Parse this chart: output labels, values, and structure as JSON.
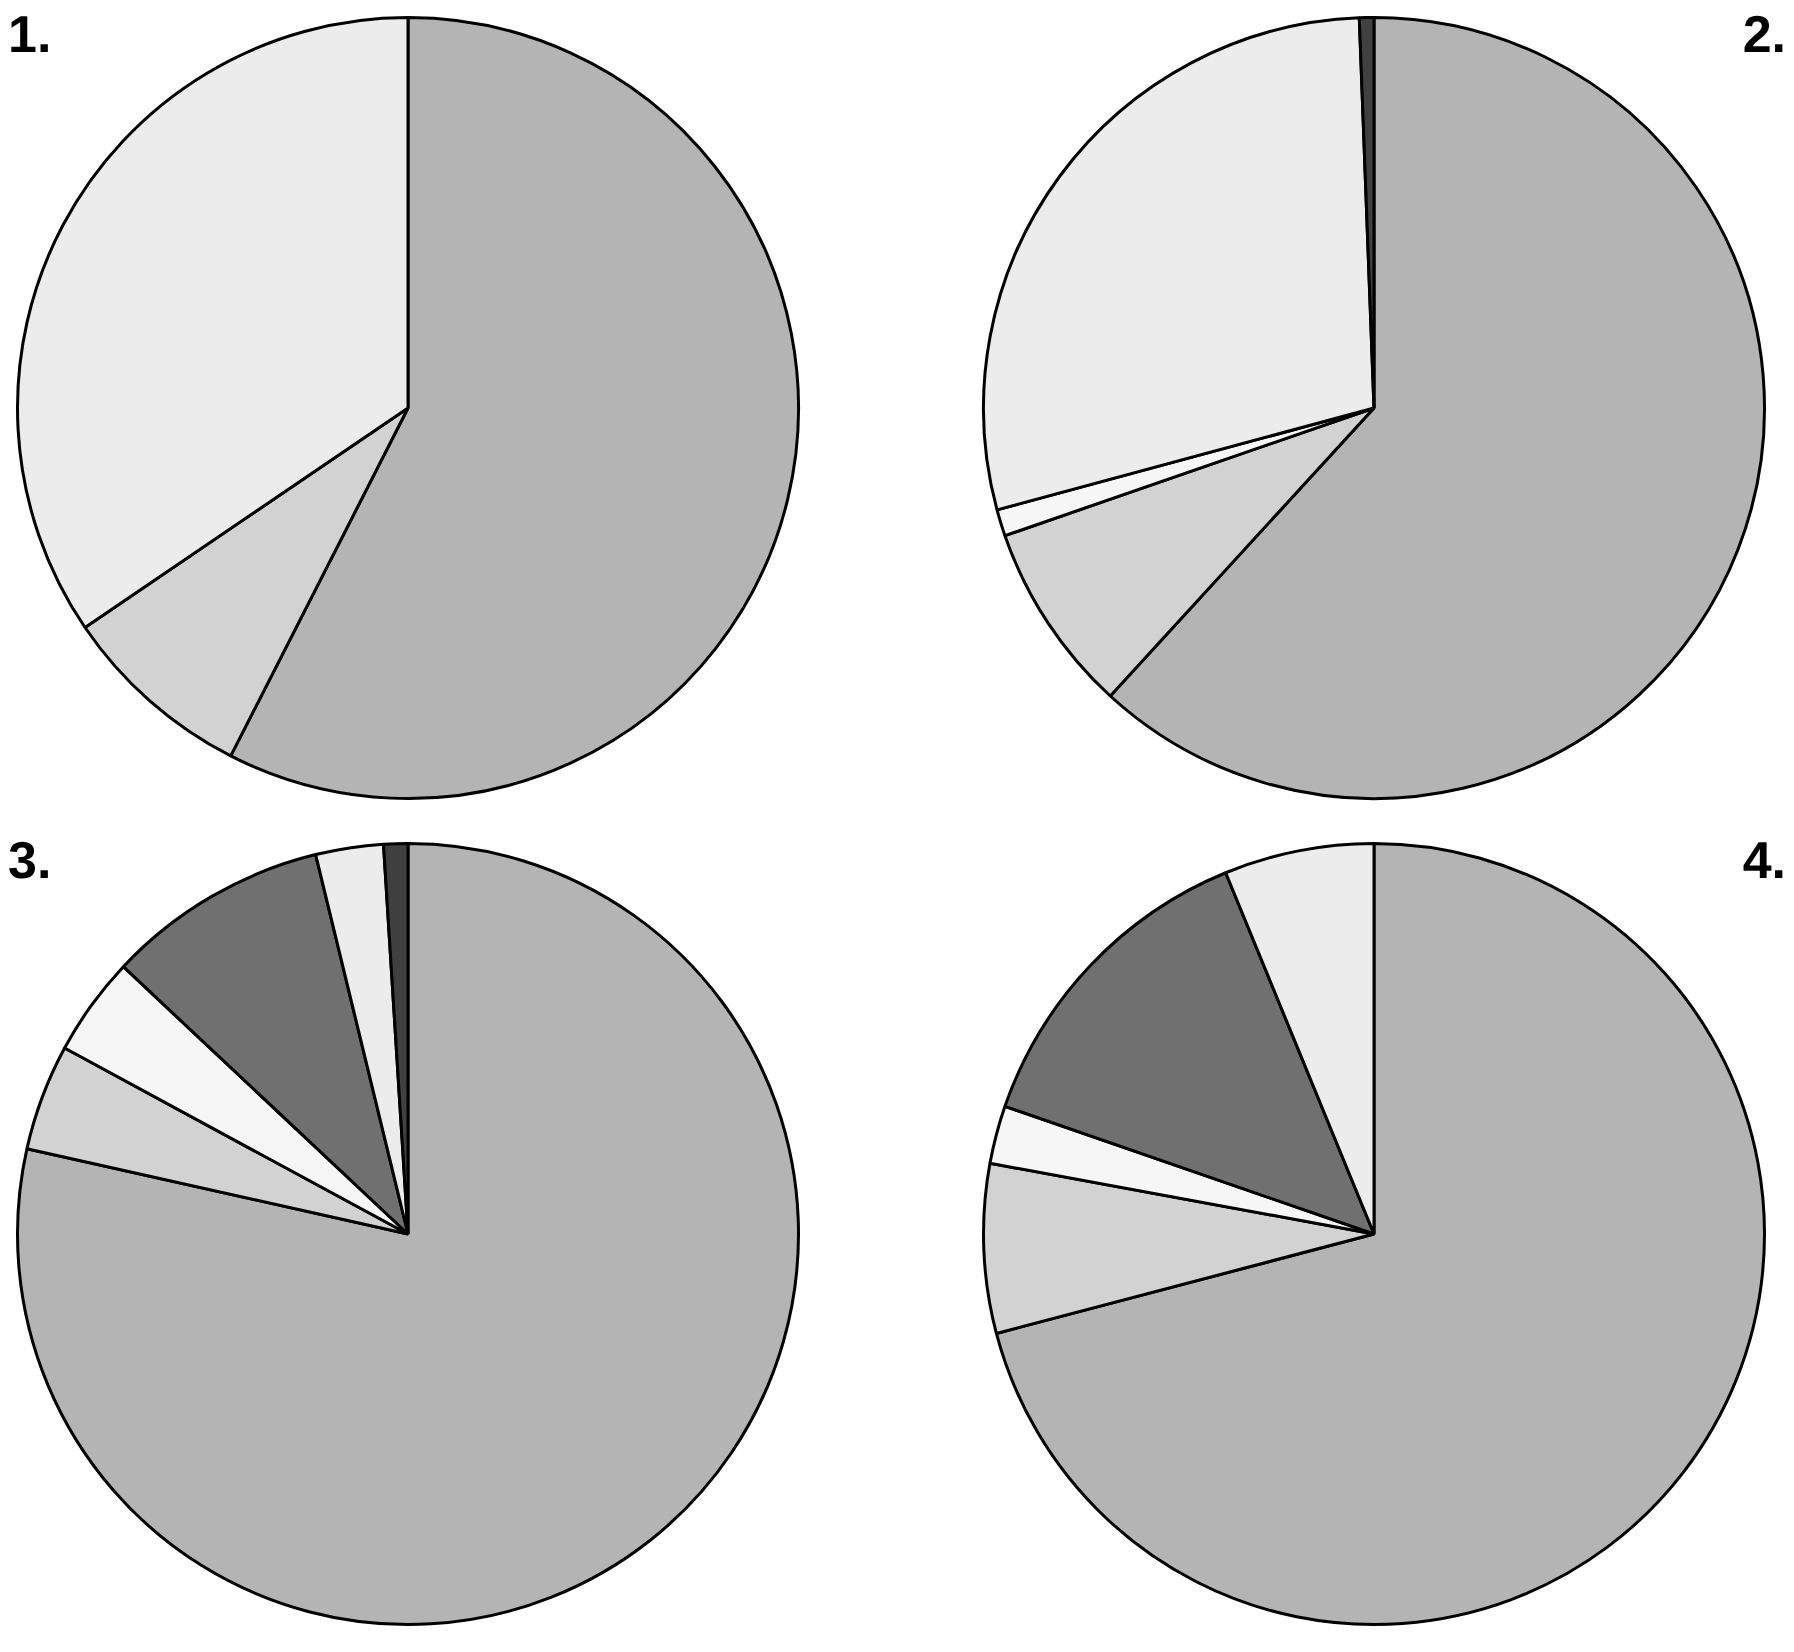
{
  "chart_data": [
    {
      "type": "pie",
      "title": "1.",
      "categories": [
        null,
        null,
        null
      ],
      "values": [
        57.5,
        8,
        34.5
      ],
      "colors": [
        "#b4b4b4",
        "#d2d2d2",
        "#ececec"
      ]
    },
    {
      "type": "pie",
      "title": "2.",
      "categories": [
        null,
        null,
        null,
        null,
        null
      ],
      "values": [
        61.8,
        7.9,
        1.1,
        28.6,
        0.6
      ],
      "colors": [
        "#b4b4b4",
        "#d2d2d2",
        "#f6f6f6",
        "#ececec",
        "#404040"
      ]
    },
    {
      "type": "pie",
      "title": "3.",
      "categories": [
        null,
        null,
        null,
        null,
        null,
        null
      ],
      "values": [
        78.5,
        4.4,
        4.1,
        9.2,
        2.8,
        1.0
      ],
      "colors": [
        "#b4b4b4",
        "#d2d2d2",
        "#f6f6f6",
        "#707070",
        "#ececec",
        "#404040"
      ]
    },
    {
      "type": "pie",
      "title": "4.",
      "categories": [
        null,
        null,
        null,
        null,
        null
      ],
      "values": [
        70.9,
        7.0,
        2.4,
        13.5,
        6.2
      ],
      "colors": [
        "#b4b4b4",
        "#d2d2d2",
        "#f6f6f6",
        "#707070",
        "#ececec"
      ]
    }
  ]
}
